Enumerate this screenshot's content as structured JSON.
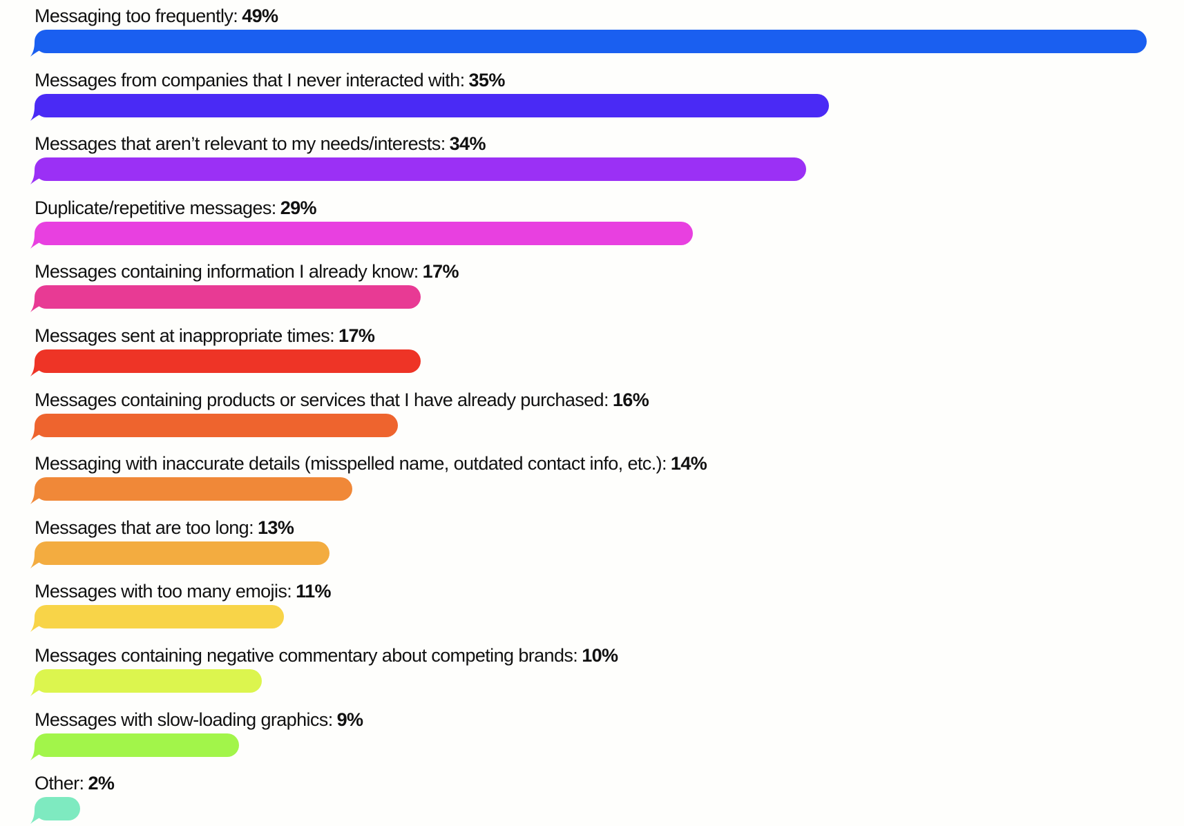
{
  "chart_data": {
    "type": "bar",
    "orientation": "horizontal",
    "categories": [
      "Messaging too frequently:",
      "Messages from companies that I never interacted with:",
      "Messages that aren’t relevant to my needs/interests:",
      "Duplicate/repetitive messages:",
      "Messages containing information I already know:",
      "Messages sent at inappropriate times:",
      "Messages containing products or services that I have already purchased:",
      "Messaging with inaccurate details (misspelled name, outdated contact info, etc.):",
      "Messages that are too long:",
      "Messages with too many emojis:",
      "Messages containing negative commentary about competing brands:",
      "Messages with slow-loading graphics:",
      "Other:"
    ],
    "values": [
      49,
      35,
      34,
      29,
      17,
      17,
      16,
      14,
      13,
      11,
      10,
      9,
      2
    ],
    "value_labels": [
      "49%",
      "35%",
      "34%",
      "29%",
      "17%",
      "17%",
      "16%",
      "14%",
      "13%",
      "11%",
      "10%",
      "9%",
      "2%"
    ],
    "unit": "%",
    "colors": [
      "#1a5ff0",
      "#4a2af5",
      "#9b30f5",
      "#e840e0",
      "#e83a94",
      "#ee3426",
      "#ee642e",
      "#f08838",
      "#f3ac40",
      "#f8d448",
      "#dcf54e",
      "#a2f54a",
      "#7eeac0"
    ],
    "title": "",
    "xlabel": "",
    "ylabel": "",
    "grid": false,
    "legend": "none"
  }
}
